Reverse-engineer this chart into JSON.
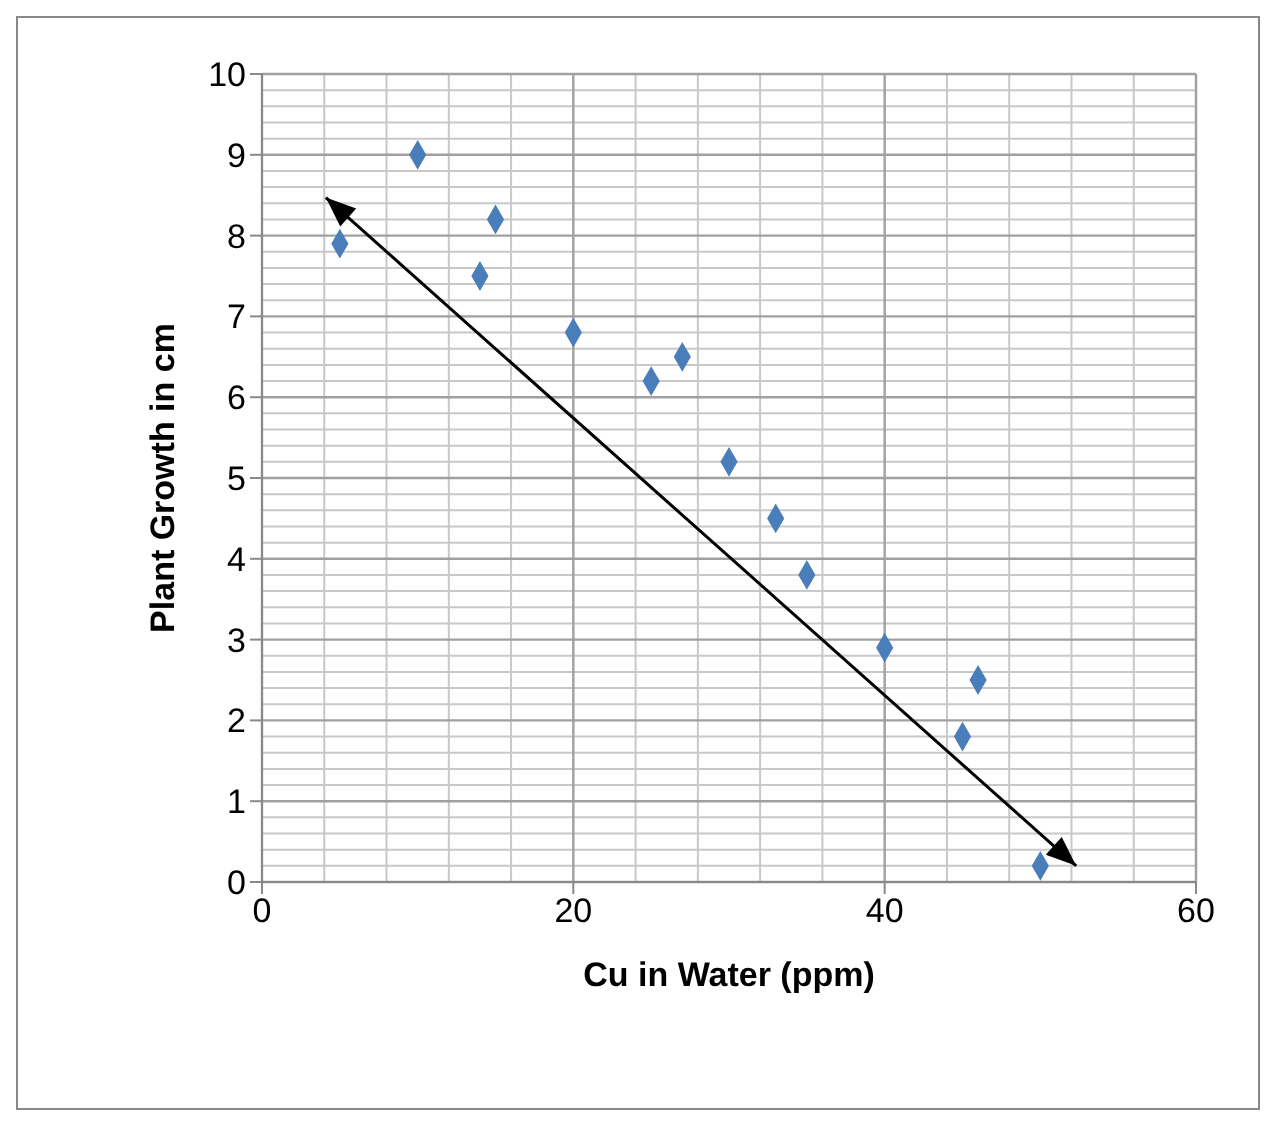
{
  "chart_data": {
    "type": "scatter",
    "xlabel": "Cu in Water (ppm)",
    "ylabel": "Plant Growth in cm",
    "x": [
      5,
      10,
      14,
      15,
      20,
      25,
      27,
      30,
      33,
      35,
      40,
      45,
      46,
      50
    ],
    "series": [
      {
        "color": "#4a7ebb",
        "values": [
          7.9,
          9,
          7.5,
          8.2,
          6.8,
          6.2,
          6.5,
          5.2,
          4.5,
          3.8,
          2.9,
          1.8,
          2.5,
          0.2
        ]
      }
    ],
    "xlim": [
      0,
      60
    ],
    "xticks": [
      0,
      20,
      40,
      60
    ],
    "ylim": [
      0,
      10
    ],
    "yticks": [
      0,
      1,
      2,
      3,
      4,
      5,
      6,
      7,
      8,
      9,
      10
    ],
    "grid": true,
    "marker": "diamond",
    "legend": false
  }
}
